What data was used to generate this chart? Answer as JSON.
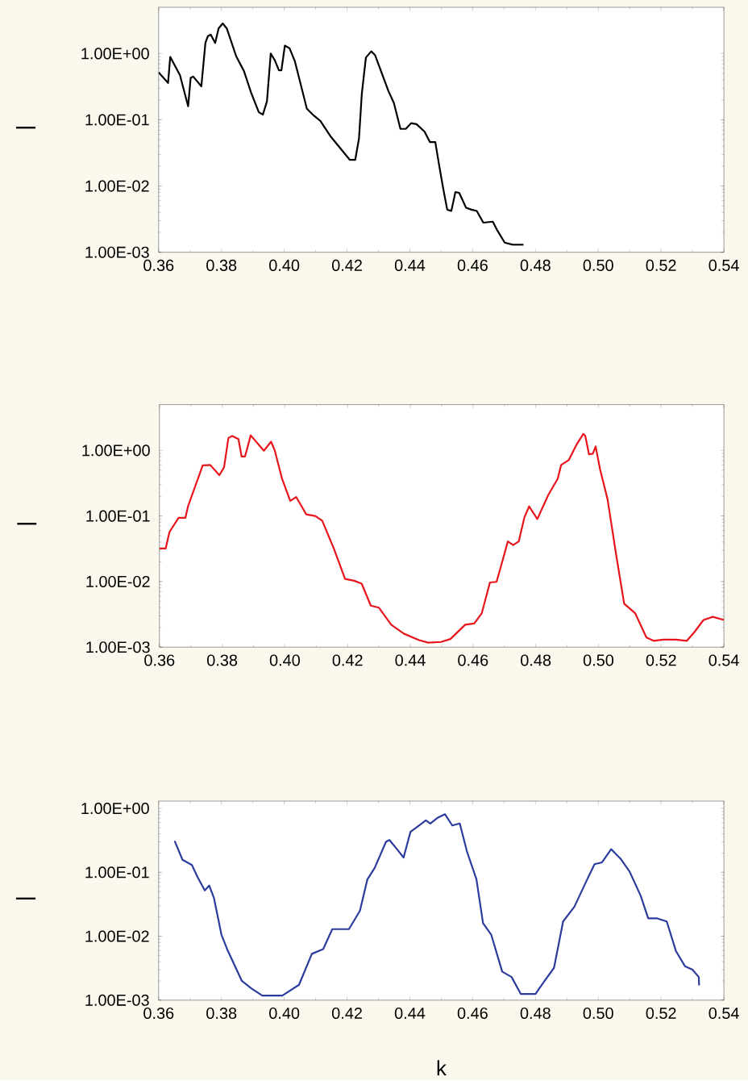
{
  "chart_data": [
    {
      "type": "line",
      "ylabel": "—",
      "log": true,
      "xlim": [
        0.36,
        0.54
      ],
      "ylim": [
        0.001,
        5
      ],
      "xticks": [
        {
          "value": 0.36,
          "label": "0.36"
        },
        {
          "value": 0.38,
          "label": "0.38"
        },
        {
          "value": 0.4,
          "label": "0.40"
        },
        {
          "value": 0.42,
          "label": "0.42"
        },
        {
          "value": 0.44,
          "label": "0.44"
        },
        {
          "value": 0.46,
          "label": "0.46"
        },
        {
          "value": 0.48,
          "label": "0.48"
        },
        {
          "value": 0.5,
          "label": "0.50"
        },
        {
          "value": 0.52,
          "label": "0.52"
        },
        {
          "value": 0.54,
          "label": "0.54"
        }
      ],
      "yticks": [
        {
          "value": 0.001,
          "label": "1.00E-03"
        },
        {
          "value": 0.01,
          "label": "1.00E-02"
        },
        {
          "value": 0.1,
          "label": "1.00E-01"
        },
        {
          "value": 1,
          "label": "1.00E+00"
        }
      ],
      "x": [
        0.36,
        0.363,
        0.3637,
        0.3668,
        0.3694,
        0.3702,
        0.371,
        0.3736,
        0.3749,
        0.3757,
        0.3766,
        0.378,
        0.3791,
        0.3804,
        0.3817,
        0.3847,
        0.3872,
        0.3894,
        0.3919,
        0.3932,
        0.3945,
        0.3957,
        0.397,
        0.3983,
        0.3991,
        0.4002,
        0.4017,
        0.4034,
        0.4072,
        0.4094,
        0.4115,
        0.4149,
        0.4209,
        0.4226,
        0.4238,
        0.4247,
        0.426,
        0.4277,
        0.4289,
        0.4332,
        0.4349,
        0.437,
        0.4387,
        0.4404,
        0.4421,
        0.4447,
        0.4464,
        0.4481,
        0.4494,
        0.4506,
        0.4519,
        0.4532,
        0.4545,
        0.4557,
        0.4579,
        0.4596,
        0.4613,
        0.4634,
        0.4664,
        0.4677,
        0.4702,
        0.4728,
        0.4762
      ],
      "series": [
        {
          "color": "#000000",
          "values": [
            0.52,
            0.36,
            0.89,
            0.47,
            0.16,
            0.43,
            0.45,
            0.32,
            1.45,
            1.84,
            1.93,
            1.45,
            2.4,
            2.85,
            2.4,
            0.91,
            0.54,
            0.26,
            0.13,
            0.12,
            0.19,
            1.0,
            0.79,
            0.56,
            0.56,
            1.32,
            1.2,
            0.76,
            0.147,
            0.116,
            0.096,
            0.055,
            0.0248,
            0.0248,
            0.052,
            0.246,
            0.87,
            1.08,
            0.95,
            0.27,
            0.18,
            0.073,
            0.073,
            0.089,
            0.086,
            0.066,
            0.046,
            0.046,
            0.0196,
            0.0093,
            0.0044,
            0.0042,
            0.0081,
            0.0079,
            0.0047,
            0.0044,
            0.0042,
            0.0028,
            0.0029,
            0.0022,
            0.0014,
            0.0013,
            0.0013
          ]
        }
      ]
    },
    {
      "type": "line",
      "ylabel": "—",
      "log": true,
      "xlim": [
        0.36,
        0.54
      ],
      "ylim": [
        0.001,
        5
      ],
      "xticks": [
        {
          "value": 0.36,
          "label": "0.36"
        },
        {
          "value": 0.38,
          "label": "0.38"
        },
        {
          "value": 0.4,
          "label": "0.40"
        },
        {
          "value": 0.42,
          "label": "0.42"
        },
        {
          "value": 0.44,
          "label": "0.44"
        },
        {
          "value": 0.46,
          "label": "0.46"
        },
        {
          "value": 0.48,
          "label": "0.48"
        },
        {
          "value": 0.5,
          "label": "0.50"
        },
        {
          "value": 0.52,
          "label": "0.52"
        },
        {
          "value": 0.54,
          "label": "0.54"
        }
      ],
      "yticks": [
        {
          "value": 0.001,
          "label": "1.00E-03"
        },
        {
          "value": 0.01,
          "label": "1.00E-02"
        },
        {
          "value": 0.1,
          "label": "1.00E-01"
        },
        {
          "value": 1,
          "label": "1.00E+00"
        }
      ],
      "x": [
        0.36,
        0.362,
        0.3632,
        0.3661,
        0.3683,
        0.3691,
        0.3738,
        0.3762,
        0.3791,
        0.3806,
        0.382,
        0.3832,
        0.3852,
        0.3862,
        0.3873,
        0.3891,
        0.3933,
        0.3956,
        0.3968,
        0.3991,
        0.4017,
        0.4036,
        0.4068,
        0.4097,
        0.4119,
        0.4156,
        0.4192,
        0.4221,
        0.4245,
        0.4274,
        0.43,
        0.4339,
        0.438,
        0.4428,
        0.4457,
        0.4498,
        0.4528,
        0.4575,
        0.4604,
        0.4628,
        0.4654,
        0.4675,
        0.4693,
        0.4711,
        0.4728,
        0.4746,
        0.4764,
        0.4779,
        0.4805,
        0.484,
        0.487,
        0.4881,
        0.4905,
        0.4929,
        0.4952,
        0.4958,
        0.497,
        0.4982,
        0.4991,
        0.5005,
        0.5029,
        0.5058,
        0.5082,
        0.5117,
        0.5153,
        0.5176,
        0.5206,
        0.5247,
        0.5282,
        0.5306,
        0.5335,
        0.5365,
        0.54
      ],
      "series": [
        {
          "color": "#e8141c",
          "values": [
            0.032,
            0.032,
            0.057,
            0.094,
            0.094,
            0.14,
            0.59,
            0.6,
            0.42,
            0.55,
            1.55,
            1.66,
            1.49,
            0.81,
            0.81,
            1.7,
            0.99,
            1.36,
            0.99,
            0.37,
            0.17,
            0.195,
            0.106,
            0.1,
            0.085,
            0.032,
            0.011,
            0.0103,
            0.0093,
            0.0043,
            0.004,
            0.0022,
            0.0016,
            0.00128,
            0.00117,
            0.0012,
            0.00133,
            0.0022,
            0.0023,
            0.0033,
            0.0097,
            0.0099,
            0.02,
            0.041,
            0.036,
            0.041,
            0.096,
            0.14,
            0.09,
            0.21,
            0.37,
            0.6,
            0.71,
            1.2,
            1.8,
            1.66,
            0.87,
            0.89,
            1.15,
            0.52,
            0.18,
            0.023,
            0.0046,
            0.0033,
            0.0014,
            0.00125,
            0.0013,
            0.0013,
            0.00125,
            0.0017,
            0.0026,
            0.0029,
            0.0026
          ]
        }
      ]
    },
    {
      "type": "line",
      "ylabel": "—",
      "xlabel": "k",
      "log": true,
      "xlim": [
        0.36,
        0.54
      ],
      "ylim": [
        0.001,
        1.3
      ],
      "xticks": [
        {
          "value": 0.36,
          "label": "0.36"
        },
        {
          "value": 0.38,
          "label": "0.38"
        },
        {
          "value": 0.4,
          "label": "0.40"
        },
        {
          "value": 0.42,
          "label": "0.42"
        },
        {
          "value": 0.44,
          "label": "0.44"
        },
        {
          "value": 0.46,
          "label": "0.46"
        },
        {
          "value": 0.48,
          "label": "0.48"
        },
        {
          "value": 0.5,
          "label": "0.50"
        },
        {
          "value": 0.52,
          "label": "0.52"
        },
        {
          "value": 0.54,
          "label": "0.54"
        }
      ],
      "yticks": [
        {
          "value": 0.001,
          "label": "1.00E-03"
        },
        {
          "value": 0.01,
          "label": "1.00E-02"
        },
        {
          "value": 0.1,
          "label": "1.00E-01"
        },
        {
          "value": 1,
          "label": "1.00E+00"
        }
      ],
      "x": [
        0.3651,
        0.3676,
        0.3706,
        0.3724,
        0.3747,
        0.3761,
        0.3776,
        0.38,
        0.3818,
        0.3865,
        0.3894,
        0.393,
        0.3994,
        0.4047,
        0.4088,
        0.4124,
        0.4153,
        0.4206,
        0.4241,
        0.4265,
        0.4288,
        0.4324,
        0.4335,
        0.4359,
        0.438,
        0.4402,
        0.4429,
        0.4451,
        0.4465,
        0.4488,
        0.4512,
        0.4535,
        0.4559,
        0.4582,
        0.4612,
        0.4633,
        0.4659,
        0.4694,
        0.4724,
        0.4753,
        0.48,
        0.4829,
        0.4859,
        0.4888,
        0.4924,
        0.4965,
        0.4988,
        0.5012,
        0.5041,
        0.5071,
        0.51,
        0.5135,
        0.5159,
        0.5188,
        0.5218,
        0.5247,
        0.5276,
        0.53,
        0.532,
        0.5321
      ],
      "series": [
        {
          "color": "#2b3c9c",
          "values": [
            0.31,
            0.157,
            0.13,
            0.084,
            0.052,
            0.062,
            0.04,
            0.0106,
            0.0063,
            0.002,
            0.00154,
            0.00118,
            0.00118,
            0.00174,
            0.0053,
            0.0063,
            0.0129,
            0.0129,
            0.025,
            0.078,
            0.117,
            0.3,
            0.32,
            0.23,
            0.17,
            0.43,
            0.54,
            0.65,
            0.58,
            0.71,
            0.81,
            0.54,
            0.58,
            0.21,
            0.078,
            0.016,
            0.0106,
            0.0028,
            0.0023,
            0.00125,
            0.00125,
            0.002,
            0.0032,
            0.017,
            0.029,
            0.078,
            0.134,
            0.143,
            0.23,
            0.163,
            0.102,
            0.043,
            0.019,
            0.019,
            0.017,
            0.0059,
            0.0034,
            0.003,
            0.0023,
            0.0017
          ]
        }
      ]
    }
  ]
}
